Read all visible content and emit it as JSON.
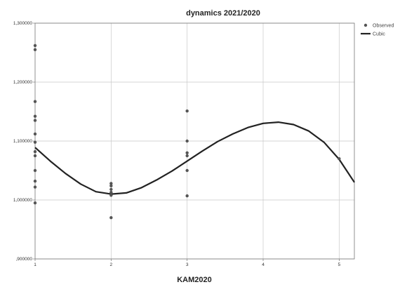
{
  "chart_data": {
    "type": "scatter",
    "title": "dynamics 2021/2020",
    "xlabel": "KAM2020",
    "ylabel": "",
    "xlim": [
      1,
      5.2
    ],
    "ylim": [
      0.9,
      1.3
    ],
    "x_ticks": [
      1,
      2,
      3,
      4,
      5
    ],
    "x_tick_labels": [
      "1",
      "2",
      "3",
      "4",
      "5"
    ],
    "y_ticks": [
      0.9,
      1.0,
      1.1,
      1.2,
      1.3
    ],
    "y_tick_labels": [
      ",900000",
      "1,000000",
      "1,100000",
      "1,200000",
      "1,300000"
    ],
    "grid": true,
    "legend": {
      "position": "top-right",
      "entries": [
        "Observed",
        "Cubic"
      ]
    },
    "series": [
      {
        "name": "Observed",
        "type": "scatter",
        "color": "#555555",
        "points": [
          [
            1,
            1.262
          ],
          [
            1,
            1.255
          ],
          [
            1,
            1.167
          ],
          [
            1,
            1.142
          ],
          [
            1,
            1.135
          ],
          [
            1,
            1.112
          ],
          [
            1,
            1.098
          ],
          [
            1,
            1.082
          ],
          [
            1,
            1.075
          ],
          [
            1,
            1.05
          ],
          [
            1,
            1.032
          ],
          [
            1,
            1.022
          ],
          [
            1,
            0.995
          ],
          [
            2,
            1.028
          ],
          [
            2,
            1.024
          ],
          [
            2,
            1.018
          ],
          [
            2,
            1.013
          ],
          [
            2,
            1.008
          ],
          [
            2,
            0.97
          ],
          [
            3,
            1.151
          ],
          [
            3,
            1.1
          ],
          [
            3,
            1.08
          ],
          [
            3,
            1.075
          ],
          [
            3,
            1.05
          ],
          [
            3,
            1.007
          ],
          [
            5,
            1.07
          ]
        ]
      },
      {
        "name": "Cubic",
        "type": "line",
        "color": "#222222",
        "x": [
          1.0,
          1.2,
          1.4,
          1.6,
          1.8,
          2.0,
          2.2,
          2.4,
          2.6,
          2.8,
          3.0,
          3.2,
          3.4,
          3.6,
          3.8,
          4.0,
          4.2,
          4.4,
          4.6,
          4.8,
          5.0,
          5.2
        ],
        "values": [
          1.089,
          1.066,
          1.045,
          1.027,
          1.014,
          1.01,
          1.012,
          1.021,
          1.034,
          1.049,
          1.066,
          1.083,
          1.099,
          1.112,
          1.123,
          1.13,
          1.132,
          1.128,
          1.117,
          1.098,
          1.069,
          1.03
        ]
      }
    ]
  }
}
